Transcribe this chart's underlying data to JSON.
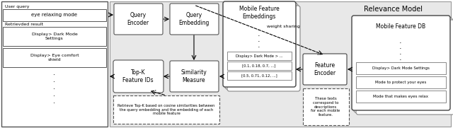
{
  "title": "Relevance Model",
  "bg_color": "#e8e8e8",
  "white": "#ffffff",
  "black": "#000000",
  "user_query_label": "User query",
  "user_query_text": "eye relaxing mode",
  "retrieved_label": "Retrievded result",
  "retrieved_items": [
    "Display> Dark Mode\nSettings",
    "Display> Eye comfort\nshield"
  ],
  "query_encoder_label": "Query\nEncoder",
  "query_embedding_label": "Query\nEmbedding",
  "top_k_label": "Top-K\nFeature IDs",
  "similarity_label": "Similarity\nMeasure",
  "mobile_feat_emb_label": "Mobile Feature\nEmbeddings",
  "feature_encoder_label": "Feature\nEncoder",
  "mobile_feat_db_label": "Mobile Feature DB",
  "weight_sharing_label": "weight sharing",
  "note_text": "Retrieve Top-K based on cosine similarities between\nthe query embedding and the embedding of each\nmobile feature",
  "emb_items": [
    "Display> Dark Mode > ...",
    "[0.1, 0.18, 0.7, ...]",
    "[0.5, 0.71, 0.12, ...]"
  ],
  "desc_text": "These texts\ncorrespond to\ndescriptions\nfor each mobile\nfeature.",
  "db_items": [
    "Display> Dark Mode Settings",
    "Mode to protect your eyes",
    "Mode that makes eyes relax"
  ]
}
